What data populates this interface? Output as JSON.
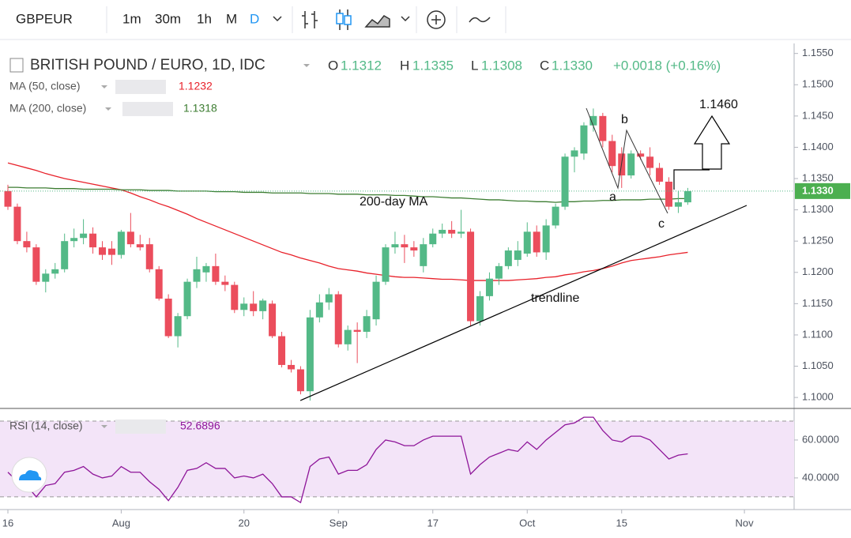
{
  "toolbar": {
    "symbol": "GBPEUR",
    "intervals": [
      "1m",
      "30m",
      "1h",
      "M",
      "D"
    ]
  },
  "chart_data": [
    {
      "type": "candlestick",
      "title": "BRITISH POUND / EURO, 1D, IDC",
      "ohlc_header": {
        "o": "O",
        "open": "1.1312",
        "h": "H",
        "high": "1.1335",
        "l": "L",
        "low": "1.1308",
        "c": "C",
        "close": "1.1330",
        "change": "+0.0018 (+0.16%)"
      },
      "last_price_label": "1.1330",
      "categories": [
        "16",
        null,
        null,
        null,
        null,
        null,
        null,
        null,
        null,
        null,
        null,
        null,
        "Aug",
        null,
        null,
        null,
        null,
        null,
        null,
        null,
        null,
        null,
        null,
        null,
        null,
        "20",
        null,
        null,
        null,
        null,
        null,
        null,
        null,
        null,
        null,
        "Sep",
        null,
        null,
        null,
        null,
        null,
        null,
        null,
        null,
        null,
        "17",
        null,
        null,
        null,
        null,
        null,
        null,
        null,
        null,
        null,
        "Oct",
        null,
        null,
        null,
        null,
        null,
        null,
        null,
        null,
        null,
        "15",
        null,
        null,
        null,
        null,
        null,
        null,
        null,
        null,
        null,
        null,
        null,
        null,
        "Nov"
      ],
      "open": [
        1.133,
        1.1305,
        1.125,
        1.124,
        1.1185,
        1.1198,
        1.1205,
        1.125,
        1.1255,
        1.1262,
        1.124,
        1.1238,
        1.1228,
        1.1265,
        1.1245,
        1.1245,
        1.1205,
        1.1158,
        1.1098,
        1.113,
        1.1185,
        1.12,
        1.121,
        1.1185,
        1.118,
        1.114,
        1.115,
        1.1138,
        1.115,
        1.1098,
        1.1052,
        1.1045,
        1.101,
        1.1128,
        1.1152,
        1.1165,
        1.1085,
        1.1108,
        1.1105,
        1.1125,
        1.1185,
        1.124,
        1.1245,
        1.124,
        1.121,
        1.1245,
        1.1262,
        1.1268,
        1.1262,
        1.1265,
        1.1122,
        1.1162,
        1.119,
        1.121,
        1.122,
        1.123,
        1.1265,
        1.1232,
        1.1275,
        1.1305,
        1.1385,
        1.139,
        1.1435,
        1.145,
        1.141,
        1.139,
        1.1355,
        1.139,
        1.1385,
        1.1367,
        1.1345,
        1.1305,
        1.1312,
        null,
        null,
        null,
        null,
        null,
        null
      ],
      "high": [
        1.134,
        1.131,
        1.1265,
        1.1245,
        1.1205,
        1.1215,
        1.1262,
        1.127,
        1.1285,
        1.1272,
        1.125,
        1.125,
        1.1268,
        1.1295,
        1.126,
        1.1255,
        1.121,
        1.1165,
        1.1135,
        1.119,
        1.1225,
        1.1215,
        1.123,
        1.1195,
        1.1185,
        1.116,
        1.117,
        1.1158,
        1.1155,
        1.1105,
        1.106,
        1.105,
        1.114,
        1.1165,
        1.1175,
        1.117,
        1.1115,
        1.112,
        1.114,
        1.1195,
        1.1245,
        1.1265,
        1.126,
        1.125,
        1.1255,
        1.127,
        1.1278,
        1.1282,
        1.13,
        1.127,
        1.117,
        1.12,
        1.1215,
        1.124,
        1.125,
        1.128,
        1.1275,
        1.1285,
        1.131,
        1.139,
        1.14,
        1.144,
        1.1462,
        1.1455,
        1.142,
        1.14,
        1.1395,
        1.1395,
        1.14,
        1.1375,
        1.1352,
        1.133,
        1.1335,
        null,
        null,
        null,
        null,
        null,
        null
      ],
      "low": [
        1.13,
        1.1245,
        1.1232,
        1.118,
        1.1168,
        1.119,
        1.12,
        1.124,
        1.1245,
        1.123,
        1.122,
        1.1212,
        1.1222,
        1.124,
        1.1235,
        1.12,
        1.1155,
        1.1095,
        1.108,
        1.1125,
        1.1175,
        1.1185,
        1.118,
        1.117,
        1.1135,
        1.113,
        1.113,
        1.1125,
        1.1095,
        1.1048,
        1.104,
        1.1005,
        1.0995,
        1.112,
        1.114,
        1.108,
        1.1075,
        1.1055,
        1.1095,
        1.1115,
        1.118,
        1.123,
        1.1215,
        1.1225,
        1.12,
        1.124,
        1.1255,
        1.1255,
        1.1255,
        1.1115,
        1.1115,
        1.1155,
        1.118,
        1.1205,
        1.121,
        1.1225,
        1.1225,
        1.122,
        1.127,
        1.13,
        1.136,
        1.138,
        1.1425,
        1.14,
        1.136,
        1.1335,
        1.135,
        1.138,
        1.1355,
        1.134,
        1.13,
        1.1295,
        1.1308,
        null,
        null,
        null,
        null,
        null,
        null
      ],
      "close": [
        1.1305,
        1.125,
        1.124,
        1.1185,
        1.1198,
        1.1205,
        1.125,
        1.1255,
        1.1262,
        1.124,
        1.1228,
        1.1228,
        1.1265,
        1.1245,
        1.124,
        1.1205,
        1.1158,
        1.1098,
        1.113,
        1.1185,
        1.1205,
        1.121,
        1.1185,
        1.118,
        1.114,
        1.115,
        1.1138,
        1.1155,
        1.1098,
        1.1052,
        1.1045,
        1.101,
        1.1128,
        1.1152,
        1.1165,
        1.1085,
        1.1108,
        1.1105,
        1.113,
        1.1185,
        1.124,
        1.1245,
        1.124,
        1.1235,
        1.1245,
        1.1262,
        1.1268,
        1.1262,
        1.1265,
        1.1122,
        1.1162,
        1.119,
        1.121,
        1.1235,
        1.1235,
        1.1265,
        1.1232,
        1.1275,
        1.1305,
        1.1385,
        1.1395,
        1.1435,
        1.145,
        1.141,
        1.137,
        1.1355,
        1.139,
        1.1385,
        1.1367,
        1.1345,
        1.1305,
        1.1312,
        1.133,
        null,
        null,
        null,
        null,
        null,
        null
      ],
      "up_color": "#53b987",
      "down_color": "#eb4d5c",
      "series": [
        {
          "name": "MA (50, close)",
          "color": "#e8212a",
          "value_label": "1.1232",
          "values": [
            1.1375,
            1.1371,
            1.1367,
            1.1363,
            1.1358,
            1.1354,
            1.135,
            1.1347,
            1.1344,
            1.1341,
            1.1338,
            1.1335,
            1.1332,
            1.1327,
            1.1321,
            1.1316,
            1.131,
            1.1305,
            1.1299,
            1.1293,
            1.1286,
            1.128,
            1.1274,
            1.1268,
            1.1262,
            1.1256,
            1.125,
            1.1244,
            1.1238,
            1.1232,
            1.1228,
            1.1223,
            1.1219,
            1.1215,
            1.121,
            1.1206,
            1.1204,
            1.1202,
            1.1199,
            1.1197,
            1.1195,
            1.1193,
            1.1192,
            1.1192,
            1.1191,
            1.119,
            1.1189,
            1.1189,
            1.1188,
            1.1187,
            1.1187,
            1.1187,
            1.1187,
            1.1187,
            1.1188,
            1.1189,
            1.119,
            1.1192,
            1.1193,
            1.1196,
            1.1198,
            1.1201,
            1.1203,
            1.1206,
            1.121,
            1.1215,
            1.1219,
            1.1221,
            1.1223,
            1.1225,
            1.1228,
            1.123,
            1.1232,
            null,
            null,
            null,
            null,
            null,
            null
          ]
        },
        {
          "name": "MA (200, close)",
          "color": "#3d7d32",
          "value_label": "1.1318",
          "values": [
            1.1336,
            1.1336,
            1.1335,
            1.1335,
            1.1335,
            1.1334,
            1.1334,
            1.1334,
            1.1333,
            1.1333,
            1.1333,
            1.1333,
            1.1332,
            1.1332,
            1.1332,
            1.1331,
            1.1331,
            1.1331,
            1.133,
            1.133,
            1.133,
            1.133,
            1.1329,
            1.1329,
            1.1329,
            1.1328,
            1.1328,
            1.1328,
            1.1327,
            1.1327,
            1.1327,
            1.1327,
            1.1326,
            1.1326,
            1.1326,
            1.1325,
            1.1325,
            1.1325,
            1.1324,
            1.1324,
            1.1324,
            1.1323,
            1.1323,
            1.1322,
            1.1321,
            1.1321,
            1.132,
            1.1319,
            1.1319,
            1.1318,
            1.1317,
            1.1316,
            1.1316,
            1.1315,
            1.1314,
            1.1314,
            1.1313,
            1.1313,
            1.1312,
            1.1313,
            1.1313,
            1.1314,
            1.1314,
            1.1315,
            1.1315,
            1.1316,
            1.1316,
            1.1316,
            1.1317,
            1.1317,
            1.1317,
            1.1318,
            1.1318,
            null,
            null,
            null,
            null,
            null,
            null
          ]
        }
      ],
      "ylim": [
        1.0985,
        1.1566
      ],
      "yticks": [
        {
          "value": 1.1,
          "label": "1.1000"
        },
        {
          "value": 1.105,
          "label": "1.1050"
        },
        {
          "value": 1.11,
          "label": "1.1100"
        },
        {
          "value": 1.115,
          "label": "1.1150"
        },
        {
          "value": 1.12,
          "label": "1.1200"
        },
        {
          "value": 1.125,
          "label": "1.1250"
        },
        {
          "value": 1.13,
          "label": "1.1300"
        },
        {
          "value": 1.135,
          "label": "1.1350"
        },
        {
          "value": 1.14,
          "label": "1.1400"
        },
        {
          "value": 1.145,
          "label": "1.1450"
        },
        {
          "value": 1.15,
          "label": "1.1500"
        },
        {
          "value": 1.155,
          "label": "1.1550"
        }
      ],
      "annotations": {
        "target": "1.1460",
        "ma_note": "200-day MA",
        "trendline": "trendline",
        "wave_a": "a",
        "wave_b": "b",
        "wave_c": "c"
      }
    },
    {
      "type": "line",
      "series": [
        {
          "name": "RSI (14, close)",
          "color": "#8e1599",
          "value_label": "52.6896",
          "values": [
            43,
            38,
            36,
            30,
            36,
            37,
            43,
            44,
            46,
            42,
            40,
            41,
            46,
            43,
            43,
            38,
            34,
            28,
            35,
            44,
            45,
            48,
            45,
            45,
            40,
            41,
            40,
            42,
            37,
            30,
            30,
            27,
            46,
            50,
            51,
            42,
            44,
            44,
            47,
            55,
            60,
            59,
            57,
            57,
            60,
            62,
            62,
            62,
            62,
            42,
            47,
            51,
            53,
            55,
            54,
            59,
            55,
            60,
            64,
            68,
            69,
            72,
            72,
            65,
            60,
            59,
            62,
            62,
            60,
            55,
            50,
            52,
            52.6896,
            null,
            null,
            null,
            null,
            null,
            null
          ]
        }
      ],
      "ylim": [
        23.3,
        75.4
      ],
      "yticks": [
        {
          "value": 40,
          "label": "40.0000"
        },
        {
          "value": 60,
          "label": "60.0000"
        }
      ],
      "bands": [
        30,
        70
      ],
      "band_color": "#f3e4f8"
    }
  ]
}
